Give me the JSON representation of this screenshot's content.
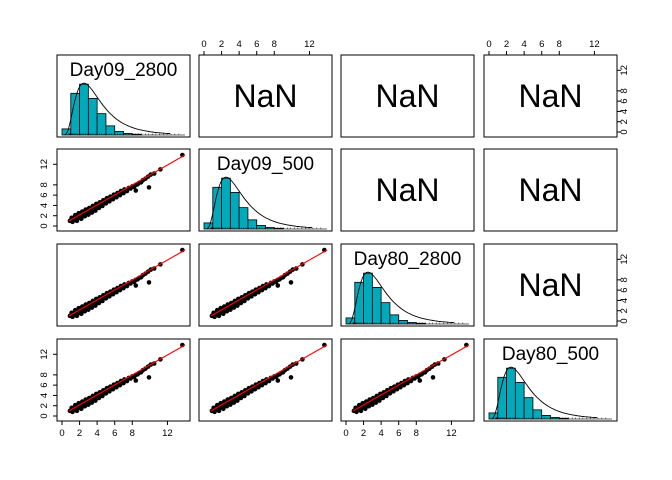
{
  "chart_data": {
    "type": "scatter",
    "variables": [
      "Day09_2800",
      "Day09_500",
      "Day80_2800",
      "Day80_500"
    ],
    "axis_range": [
      0,
      14
    ],
    "axis_ticks": [
      0,
      2,
      4,
      6,
      8,
      12
    ],
    "axis_tick_labels": [
      "0",
      "2",
      "4",
      "6",
      "8",
      "12"
    ],
    "upper_panel_text": "NaN",
    "colors": {
      "histogram_fill": "#00AABB",
      "fit_line": "#ff0000",
      "points": "#000000",
      "density": "#000000"
    },
    "histogram": {
      "bin_edges": [
        0,
        1,
        2,
        3,
        4,
        5,
        6,
        7,
        8,
        9,
        10,
        11,
        12,
        13,
        14
      ],
      "counts": [
        0.12,
        0.82,
        1.0,
        0.72,
        0.42,
        0.18,
        0.07,
        0.03,
        0.015,
        0.008,
        0.004,
        0.002,
        0.001,
        0.001
      ]
    },
    "scatter_points": [
      {
        "x": 0.9,
        "y": 1.0
      },
      {
        "x": 1.1,
        "y": 1.6
      },
      {
        "x": 1.2,
        "y": 0.8
      },
      {
        "x": 1.4,
        "y": 1.3
      },
      {
        "x": 1.5,
        "y": 2.1
      },
      {
        "x": 1.6,
        "y": 1.5
      },
      {
        "x": 1.7,
        "y": 1.0
      },
      {
        "x": 1.8,
        "y": 1.9
      },
      {
        "x": 1.9,
        "y": 2.5
      },
      {
        "x": 2.0,
        "y": 1.6
      },
      {
        "x": 2.1,
        "y": 2.2
      },
      {
        "x": 2.2,
        "y": 1.4
      },
      {
        "x": 2.3,
        "y": 2.8
      },
      {
        "x": 2.4,
        "y": 2.0
      },
      {
        "x": 2.5,
        "y": 2.6
      },
      {
        "x": 2.6,
        "y": 1.9
      },
      {
        "x": 2.7,
        "y": 3.2
      },
      {
        "x": 2.8,
        "y": 2.4
      },
      {
        "x": 2.9,
        "y": 2.9
      },
      {
        "x": 3.0,
        "y": 2.2
      },
      {
        "x": 3.1,
        "y": 3.5
      },
      {
        "x": 3.2,
        "y": 2.8
      },
      {
        "x": 3.3,
        "y": 3.3
      },
      {
        "x": 3.4,
        "y": 2.6
      },
      {
        "x": 3.5,
        "y": 3.9
      },
      {
        "x": 3.6,
        "y": 3.2
      },
      {
        "x": 3.7,
        "y": 3.6
      },
      {
        "x": 3.8,
        "y": 3.0
      },
      {
        "x": 3.9,
        "y": 4.3
      },
      {
        "x": 4.0,
        "y": 3.6
      },
      {
        "x": 4.1,
        "y": 4.0
      },
      {
        "x": 4.2,
        "y": 3.5
      },
      {
        "x": 4.3,
        "y": 4.6
      },
      {
        "x": 4.4,
        "y": 4.1
      },
      {
        "x": 4.5,
        "y": 4.4
      },
      {
        "x": 4.6,
        "y": 3.9
      },
      {
        "x": 4.7,
        "y": 5.0
      },
      {
        "x": 4.8,
        "y": 4.5
      },
      {
        "x": 4.9,
        "y": 4.8
      },
      {
        "x": 5.0,
        "y": 4.4
      },
      {
        "x": 5.1,
        "y": 5.4
      },
      {
        "x": 5.2,
        "y": 4.9
      },
      {
        "x": 5.3,
        "y": 5.1
      },
      {
        "x": 5.4,
        "y": 4.8
      },
      {
        "x": 5.5,
        "y": 5.7
      },
      {
        "x": 5.6,
        "y": 5.3
      },
      {
        "x": 5.7,
        "y": 5.5
      },
      {
        "x": 5.8,
        "y": 5.2
      },
      {
        "x": 5.9,
        "y": 6.1
      },
      {
        "x": 6.0,
        "y": 5.7
      },
      {
        "x": 6.1,
        "y": 5.9
      },
      {
        "x": 6.2,
        "y": 5.6
      },
      {
        "x": 6.3,
        "y": 6.4
      },
      {
        "x": 6.4,
        "y": 6.1
      },
      {
        "x": 6.5,
        "y": 6.3
      },
      {
        "x": 6.6,
        "y": 6.0
      },
      {
        "x": 6.7,
        "y": 6.8
      },
      {
        "x": 6.8,
        "y": 6.5
      },
      {
        "x": 6.9,
        "y": 6.7
      },
      {
        "x": 7.0,
        "y": 6.4
      },
      {
        "x": 7.1,
        "y": 7.1
      },
      {
        "x": 7.2,
        "y": 6.9
      },
      {
        "x": 7.3,
        "y": 7.0
      },
      {
        "x": 7.4,
        "y": 6.8
      },
      {
        "x": 7.6,
        "y": 7.4
      },
      {
        "x": 7.8,
        "y": 7.3
      },
      {
        "x": 8.0,
        "y": 7.7
      },
      {
        "x": 8.2,
        "y": 7.6
      },
      {
        "x": 8.4,
        "y": 8.0
      },
      {
        "x": 8.6,
        "y": 8.1
      },
      {
        "x": 8.8,
        "y": 8.4
      },
      {
        "x": 9.0,
        "y": 8.5
      },
      {
        "x": 9.2,
        "y": 8.9
      },
      {
        "x": 9.5,
        "y": 9.2
      },
      {
        "x": 9.8,
        "y": 9.6
      },
      {
        "x": 10.1,
        "y": 10.0
      },
      {
        "x": 10.5,
        "y": 10.2
      },
      {
        "x": 8.4,
        "y": 6.9
      },
      {
        "x": 9.9,
        "y": 7.5
      },
      {
        "x": 11.2,
        "y": 11.0
      },
      {
        "x": 13.7,
        "y": 13.8
      }
    ],
    "fit_line": [
      {
        "x": 0.8,
        "y": 1.0
      },
      {
        "x": 14.0,
        "y": 13.8
      }
    ]
  }
}
